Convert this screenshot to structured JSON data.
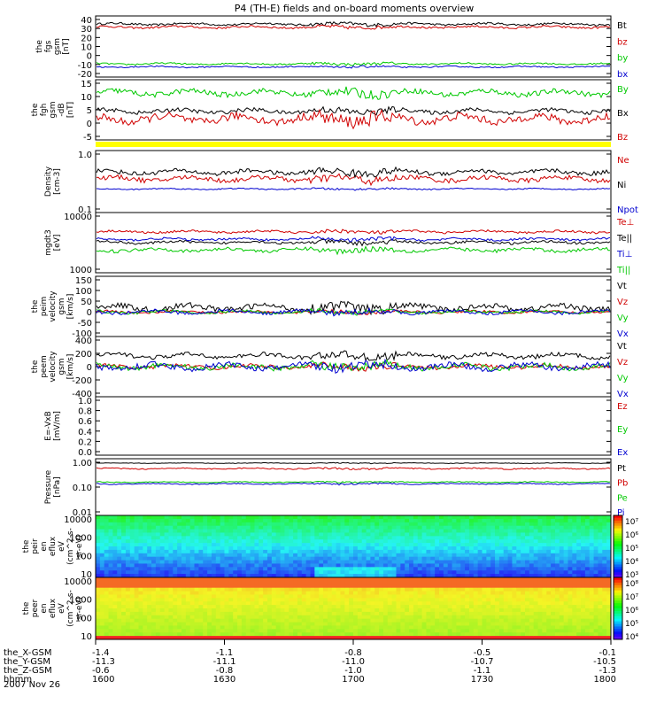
{
  "title": "P4 (TH-E) fields and on-board moments overview",
  "footer": {
    "rows": [
      {
        "label": "the_X-GSM",
        "values": [
          "-1.4",
          "-1.1",
          "-0.8",
          "-0.5",
          "-0.1"
        ]
      },
      {
        "label": "the_Y-GSM",
        "values": [
          "-11.3",
          "-11.1",
          "-11.0",
          "-10.7",
          "-10.5"
        ]
      },
      {
        "label": "the_Z-GSM",
        "values": [
          "-0.6",
          "-0.8",
          "-1.0",
          "-1.1",
          "-1.3"
        ]
      },
      {
        "label": "hhmm",
        "values": [
          "1600",
          "1630",
          "1700",
          "1730",
          "1800"
        ]
      }
    ],
    "date": "2007 Nov 26"
  },
  "chart_data": [
    {
      "type": "line",
      "ylabel": [
        "the",
        "fgs",
        "gsm",
        "[nT]"
      ],
      "yticks": [
        "40",
        "30",
        "20",
        "10",
        "0",
        "-10",
        "-20"
      ],
      "ylim": [
        -20,
        40
      ],
      "series": [
        {
          "name": "Bt",
          "color": "#000000",
          "mean": 32,
          "amp": 2
        },
        {
          "name": "bz",
          "color": "#d00000",
          "mean": 29,
          "amp": 2
        },
        {
          "name": "by",
          "color": "#00c800",
          "mean": -7,
          "amp": 1.5
        },
        {
          "name": "bx",
          "color": "#0000d0",
          "mean": -10,
          "amp": 1.2
        }
      ]
    },
    {
      "type": "line",
      "ylabel": [
        "the",
        "fgh",
        "gsm",
        "-dB",
        "[nT]"
      ],
      "yticks": [
        "15",
        "10",
        "5",
        "0",
        "-5"
      ],
      "ylim": [
        -8,
        15
      ],
      "series": [
        {
          "name": "By",
          "color": "#00c800",
          "mean": 10,
          "amp": 2
        },
        {
          "name": "Bx",
          "color": "#000000",
          "mean": 3,
          "amp": 1.5
        },
        {
          "name": "Bz",
          "color": "#d00000",
          "mean": 0,
          "amp": 3
        }
      ]
    },
    {
      "type": "line",
      "log": true,
      "ylabel": [
        "Density",
        "[cm-3]"
      ],
      "yticks": [
        "1.0",
        "0.1"
      ],
      "ylim": [
        0.1,
        1.0
      ],
      "series": [
        {
          "name": "Ne",
          "color": "#d00000",
          "mean": 0.35,
          "amp": 0.06
        },
        {
          "name": "Ni",
          "color": "#000000",
          "mean": 0.45,
          "amp": 0.07
        },
        {
          "name": "Npot",
          "color": "#0000d0",
          "mean": 0.24,
          "amp": 0.01
        }
      ]
    },
    {
      "type": "line",
      "log": true,
      "ylabel": [
        "mgdt3",
        "[eV]"
      ],
      "yticks": [
        "10000",
        "1000"
      ],
      "ylim": [
        1000,
        10000
      ],
      "series": [
        {
          "name": "Te⊥",
          "color": "#d00000",
          "mean": 4800,
          "amp": 400
        },
        {
          "name": "Te||",
          "color": "#000000",
          "mean": 3200,
          "amp": 300
        },
        {
          "name": "Ti⊥",
          "color": "#0000d0",
          "mean": 3600,
          "amp": 300
        },
        {
          "name": "Ti||",
          "color": "#00c800",
          "mean": 2400,
          "amp": 300
        }
      ]
    },
    {
      "type": "line",
      "ylabel": [
        "the",
        "peim",
        "velocity",
        "gsm",
        "[km/s]"
      ],
      "yticks": [
        "150",
        "100",
        "50",
        "0",
        "-50",
        "-100"
      ],
      "ylim": [
        -110,
        160
      ],
      "series": [
        {
          "name": "Vt",
          "color": "#000000",
          "mean": 20,
          "amp": 25
        },
        {
          "name": "Vz",
          "color": "#d00000",
          "mean": 0,
          "amp": 10
        },
        {
          "name": "Vy",
          "color": "#00c800",
          "mean": 0,
          "amp": 12
        },
        {
          "name": "Vx",
          "color": "#0000d0",
          "mean": 0,
          "amp": 15
        }
      ]
    },
    {
      "type": "line",
      "ylabel": [
        "the",
        "peem",
        "velocity",
        "gsm",
        "[km/s]"
      ],
      "yticks": [
        "400",
        "200",
        "0",
        "-200",
        "-400"
      ],
      "ylim": [
        -420,
        420
      ],
      "series": [
        {
          "name": "Vt",
          "color": "#000000",
          "mean": 150,
          "amp": 60
        },
        {
          "name": "Vz",
          "color": "#d00000",
          "mean": 0,
          "amp": 50
        },
        {
          "name": "Vy",
          "color": "#00c800",
          "mean": 0,
          "amp": 70
        },
        {
          "name": "Vx",
          "color": "#0000d0",
          "mean": 0,
          "amp": 80
        }
      ]
    },
    {
      "type": "line",
      "ylabel": [
        "E=-VxB",
        "[mV/m]"
      ],
      "yticks": [
        "1.0",
        "0.8",
        "0.6",
        "0.4",
        "0.2",
        "0.0"
      ],
      "ylim": [
        0,
        1
      ],
      "series": [
        {
          "name": "Ez",
          "color": "#d00000"
        },
        {
          "name": "Ey",
          "color": "#00c800"
        },
        {
          "name": "Ex",
          "color": "#0000d0"
        }
      ]
    },
    {
      "type": "line",
      "log": true,
      "ylabel": [
        "Pressure",
        "[nPa]"
      ],
      "yticks": [
        "1.00",
        "0.10",
        "0.01"
      ],
      "ylim": [
        0.01,
        1.0
      ],
      "series": [
        {
          "name": "Pt",
          "color": "#000000",
          "mean": 0.7,
          "amp": 0.03
        },
        {
          "name": "Pb",
          "color": "#d00000",
          "mean": 0.45,
          "amp": 0.04
        },
        {
          "name": "Pe",
          "color": "#00c800",
          "mean": 0.15,
          "amp": 0.01
        },
        {
          "name": "Pi",
          "color": "#0000d0",
          "mean": 0.13,
          "amp": 0.01
        }
      ]
    },
    {
      "type": "heatmap",
      "ylabel": [
        "the",
        "peir",
        "en",
        "eflux",
        "eV",
        "(cm^2-s-",
        "sr-eV)"
      ],
      "yticks": [
        "10000",
        "1000",
        "100",
        "10"
      ],
      "colorbar_ticks": [
        "10⁷",
        "10⁶",
        "10⁵",
        "10⁴",
        "10³"
      ]
    },
    {
      "type": "heatmap",
      "ylabel": [
        "the",
        "peer",
        "en",
        "eflux",
        "eV",
        "(cm^2-s-",
        "sr-eV)"
      ],
      "yticks": [
        "10000",
        "1000",
        "100",
        "10"
      ],
      "colorbar_ticks": [
        "10⁸",
        "10⁷",
        "10⁶",
        "10⁵",
        "10⁴"
      ]
    }
  ]
}
